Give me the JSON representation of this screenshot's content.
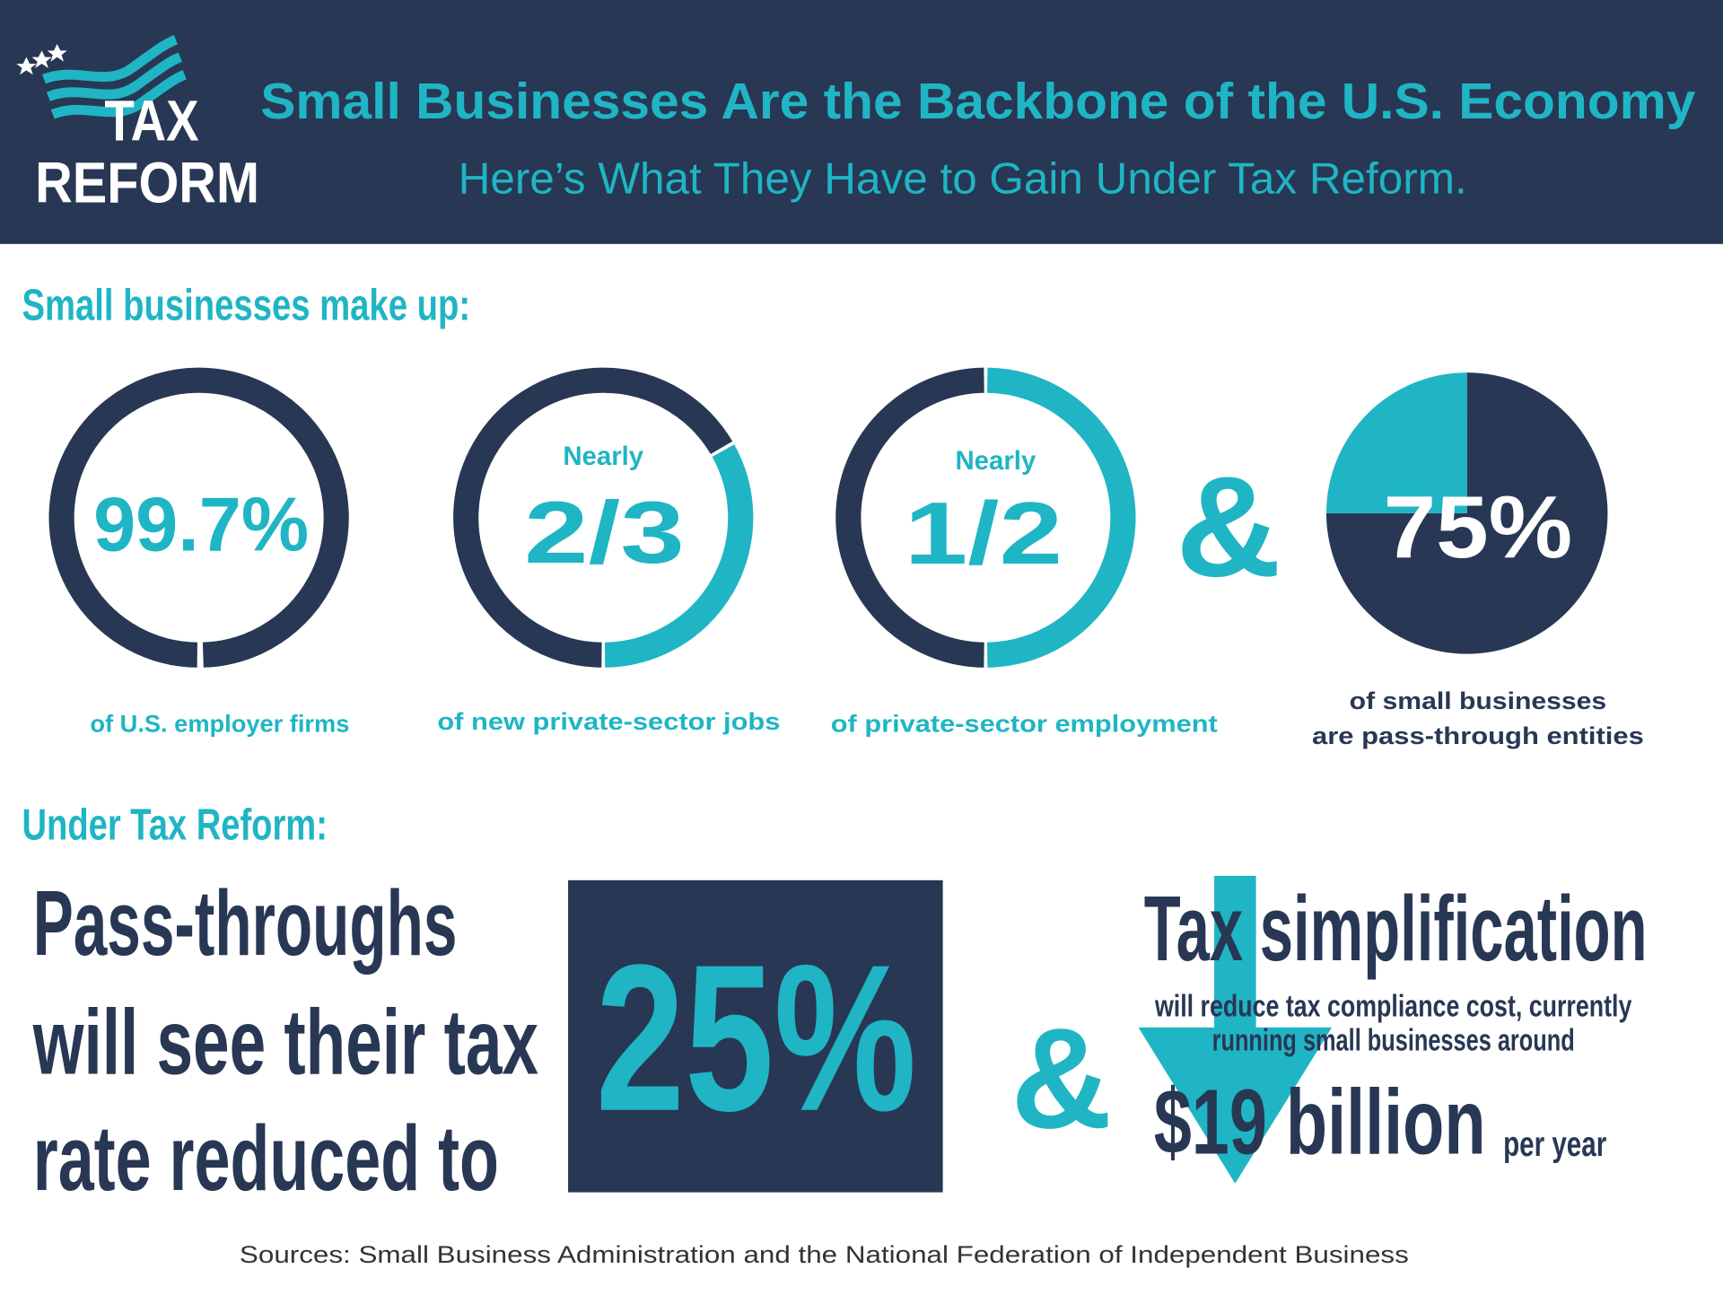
{
  "header": {
    "logo": [
      "TAX",
      "REFORM"
    ],
    "title": "Small Businesses Are the Backbone of the U.S. Economy",
    "subtitle": "Here’s What They Have to Gain Under Tax Reform."
  },
  "section1": {
    "heading": "Small businesses make up:",
    "connector": "&",
    "stats": [
      {
        "figure": "99.7%",
        "caption": [
          "of U.S. employer firms"
        ],
        "segments": [
          {
            "color": "#283754",
            "value": 99.7
          }
        ]
      },
      {
        "prefix": "Nearly",
        "figure": "2/3",
        "caption": [
          "of new private-sector jobs"
        ],
        "segments": [
          {
            "color": "#283754",
            "value": 66.7
          },
          {
            "color": "#1fb5c4",
            "value": 33.3
          }
        ]
      },
      {
        "prefix": "Nearly",
        "figure": "1/2",
        "caption": [
          "of private-sector employment"
        ],
        "segments": [
          {
            "color": "#283754",
            "value": 50
          },
          {
            "color": "#1fb5c4",
            "value": 50
          }
        ]
      },
      {
        "figure": "75%",
        "caption": [
          "of small businesses",
          "are pass-through entities"
        ],
        "segments": [
          {
            "color": "#283754",
            "value": 75
          },
          {
            "color": "#1fb5c4",
            "value": 25
          }
        ]
      }
    ]
  },
  "section2": {
    "heading": "Under Tax Reform:",
    "connector": "&",
    "left_lines": [
      "Pass-throughs",
      "will see their tax",
      "rate reduced to"
    ],
    "rate": "25%",
    "right_title": "Tax simplification",
    "right_lines": [
      "will reduce tax compliance cost,  currently",
      "running small businesses around"
    ],
    "amount": "$19 billion",
    "amount_suffix": "per year"
  },
  "sources": "Sources: Small Business Administration and the National Federation of Independent Business"
}
